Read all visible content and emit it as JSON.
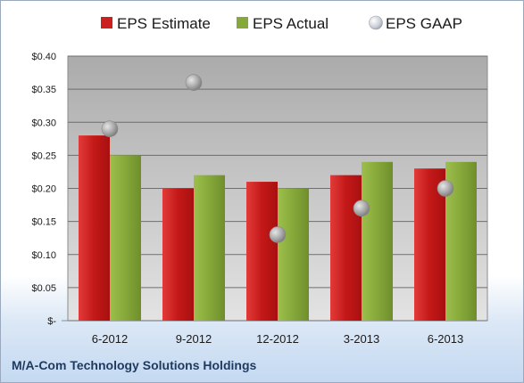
{
  "chart_data": {
    "type": "bar",
    "title": "M/A-Com Technology Solutions Holdings",
    "categories": [
      "6-2012",
      "9-2012",
      "12-2012",
      "3-2013",
      "6-2013"
    ],
    "series": [
      {
        "name": "EPS Estimate",
        "kind": "bar",
        "color": "#cc2020",
        "values": [
          0.28,
          0.2,
          0.21,
          0.22,
          0.23
        ]
      },
      {
        "name": "EPS Actual",
        "kind": "bar",
        "color": "#86a83a",
        "values": [
          0.25,
          0.22,
          0.2,
          0.24,
          0.24
        ]
      },
      {
        "name": "EPS GAAP",
        "kind": "marker",
        "color": "#a6a6a6",
        "values": [
          0.29,
          0.36,
          0.13,
          0.17,
          0.2
        ]
      }
    ],
    "ylim": [
      0,
      0.4
    ],
    "yticks": [
      {
        "value": 0.4,
        "label": "$0.40"
      },
      {
        "value": 0.35,
        "label": "$0.35"
      },
      {
        "value": 0.3,
        "label": "$0.30"
      },
      {
        "value": 0.25,
        "label": "$0.25"
      },
      {
        "value": 0.2,
        "label": "$0.20"
      },
      {
        "value": 0.15,
        "label": "$0.15"
      },
      {
        "value": 0.1,
        "label": "$0.10"
      },
      {
        "value": 0.05,
        "label": "$0.05"
      },
      {
        "value": 0.0,
        "label": "$-"
      }
    ],
    "grid": true,
    "legend_position": "top"
  }
}
